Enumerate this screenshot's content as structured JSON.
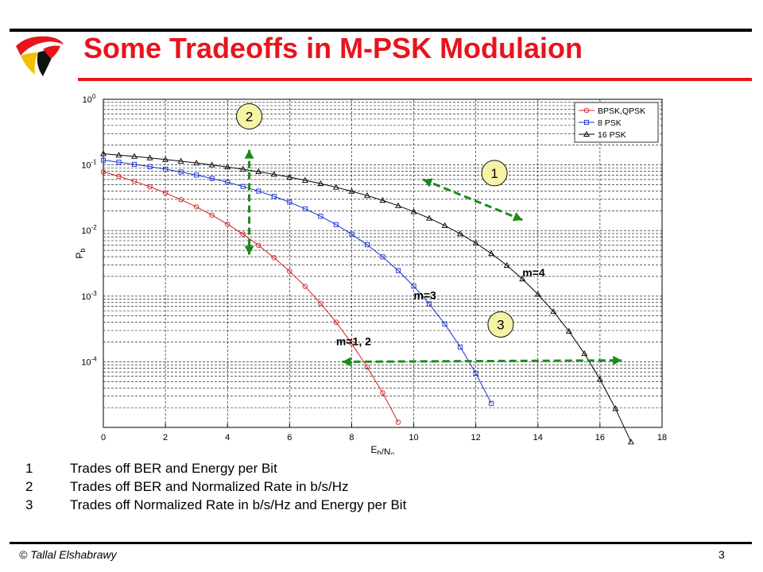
{
  "slide": {
    "title": "Some Tradeoffs in M-PSK Modulaion",
    "footer": "© Tallal Elshabrawy",
    "page_number": "3"
  },
  "notes": [
    {
      "num": "1",
      "text": "Trades off BER and Energy per Bit"
    },
    {
      "num": "2",
      "text": "Trades off BER and Normalized Rate in b/s/Hz"
    },
    {
      "num": "3",
      "text": "Trades off Normalized Rate in b/s/Hz and Energy per Bit"
    }
  ],
  "colors": {
    "title": "#e8141c",
    "bpsk": "#d62020",
    "psk8": "#1a2fd0",
    "psk16": "#000000",
    "annotation": "#1c8a1c"
  },
  "chart_data": {
    "type": "line",
    "xlabel": "E_b/N_0",
    "ylabel": "P_b",
    "xlim": [
      0,
      18
    ],
    "ylim": [
      1e-05,
      1
    ],
    "yscale": "log",
    "grid": true,
    "legend_position": "top-right",
    "x_ticks": [
      "0",
      "2",
      "4",
      "6",
      "8",
      "10",
      "12",
      "14",
      "16",
      "18"
    ],
    "y_ticks": [
      {
        "base": "10",
        "exp": "0",
        "value": 1
      },
      {
        "base": "10",
        "exp": "-1",
        "value": 0.1
      },
      {
        "base": "10",
        "exp": "-2",
        "value": 0.01
      },
      {
        "base": "10",
        "exp": "-3",
        "value": 0.001
      },
      {
        "base": "10",
        "exp": "-4",
        "value": 0.0001
      }
    ],
    "series": [
      {
        "name": "BPSK,QPSK",
        "marker": "circle",
        "x": [
          0,
          0.5,
          1,
          1.5,
          2,
          2.5,
          3,
          3.5,
          4,
          4.5,
          5,
          5.5,
          6,
          6.5,
          7,
          7.5,
          8,
          8.5,
          9,
          9.5
        ],
        "values": [
          0.0786,
          0.0671,
          0.0563,
          0.0464,
          0.0375,
          0.0296,
          0.0229,
          0.0172,
          0.0125,
          0.0088,
          0.00595,
          0.00386,
          0.00239,
          0.00141,
          0.000773,
          0.000401,
          0.000191,
          8.3e-05,
          3.36e-05,
          1.2e-05
        ]
      },
      {
        "name": "8 PSK",
        "marker": "square",
        "x": [
          0,
          0.5,
          1,
          1.5,
          2,
          2.5,
          3,
          3.5,
          4,
          4.5,
          5,
          5.5,
          6,
          6.5,
          7,
          7.5,
          8,
          8.5,
          9,
          9.5,
          10,
          10.5,
          11,
          11.5,
          12,
          12.5
        ],
        "values": [
          0.118,
          0.11,
          0.102,
          0.0942,
          0.0862,
          0.0781,
          0.0701,
          0.0622,
          0.0545,
          0.047,
          0.0399,
          0.0332,
          0.027,
          0.0214,
          0.0165,
          0.0123,
          0.00882,
          0.00607,
          0.00397,
          0.00245,
          0.00142,
          0.000765,
          0.000377,
          0.000168,
          6.67e-05,
          2.32e-05
        ]
      },
      {
        "name": "16 PSK",
        "marker": "triangle",
        "x": [
          0,
          0.5,
          1,
          1.5,
          2,
          2.5,
          3,
          3.5,
          4,
          4.5,
          5,
          5.5,
          6,
          6.5,
          7,
          7.5,
          8,
          8.5,
          9,
          9.5,
          10,
          10.5,
          11,
          11.5,
          12,
          12.5,
          13,
          13.5,
          14,
          14.5,
          15,
          15.5,
          16,
          16.5,
          17
        ],
        "values": [
          0.148,
          0.141,
          0.135,
          0.128,
          0.121,
          0.114,
          0.107,
          0.1,
          0.093,
          0.0859,
          0.0789,
          0.0719,
          0.0651,
          0.0584,
          0.0519,
          0.0457,
          0.0397,
          0.0341,
          0.0288,
          0.0239,
          0.0194,
          0.0154,
          0.0119,
          0.00891,
          0.00644,
          0.00446,
          0.00294,
          0.00183,
          0.00107,
          0.000582,
          0.000292,
          0.000133,
          5.42e-05,
          1.93e-05,
          6e-06
        ]
      }
    ],
    "annotations": [
      {
        "label": "m=1, 2",
        "x": 7.5,
        "y": 0.00018
      },
      {
        "label": "m=3",
        "x": 10.0,
        "y": 0.0009
      },
      {
        "label": "m=4",
        "x": 13.5,
        "y": 0.002
      },
      {
        "label": "1",
        "x": 12.6,
        "y": 0.075
      },
      {
        "label": "2",
        "x": 4.7,
        "y": 0.55
      },
      {
        "label": "3",
        "x": 12.8,
        "y": 0.00037
      }
    ],
    "arrows": [
      {
        "id": "1",
        "from": [
          10.3,
          0.06
        ],
        "to": [
          13.5,
          0.0145
        ]
      },
      {
        "id": "2",
        "from": [
          4.7,
          0.17
        ],
        "to": [
          4.7,
          0.0043
        ]
      },
      {
        "id": "3",
        "from": [
          7.7,
          0.0001
        ],
        "to": [
          16.7,
          0.000105
        ]
      }
    ]
  }
}
